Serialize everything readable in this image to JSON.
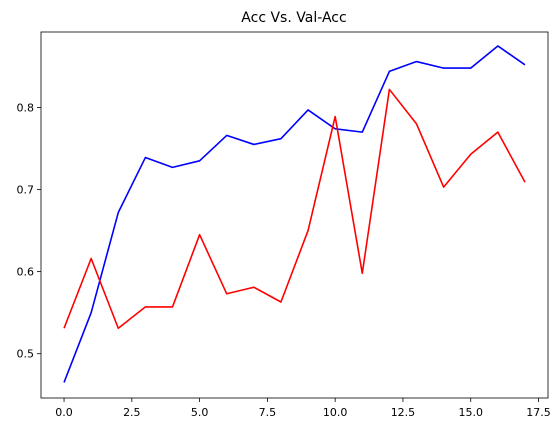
{
  "chart_data": {
    "type": "line",
    "title": "Acc Vs. Val-Acc",
    "xlabel": "",
    "ylabel": "",
    "xlim": [
      -0.85,
      17.85
    ],
    "ylim": [
      0.446,
      0.892
    ],
    "xticks": [
      0.0,
      2.5,
      5.0,
      7.5,
      10.0,
      12.5,
      15.0,
      17.5
    ],
    "xtick_labels": [
      "0.0",
      "2.5",
      "5.0",
      "7.5",
      "10.0",
      "12.5",
      "15.0",
      "17.5"
    ],
    "yticks": [
      0.5,
      0.6,
      0.7,
      0.8
    ],
    "ytick_labels": [
      "0.5",
      "0.6",
      "0.7",
      "0.8"
    ],
    "grid": false,
    "legend": null,
    "x": [
      0,
      1,
      2,
      3,
      4,
      5,
      6,
      7,
      8,
      9,
      10,
      11,
      12,
      13,
      14,
      15,
      16,
      17
    ],
    "series": [
      {
        "color": "#0000ff",
        "values": [
          0.465,
          0.55,
          0.672,
          0.739,
          0.727,
          0.735,
          0.766,
          0.755,
          0.762,
          0.797,
          0.774,
          0.77,
          0.844,
          0.856,
          0.848,
          0.848,
          0.875,
          0.852
        ]
      },
      {
        "color": "#ff0000",
        "values": [
          0.531,
          0.616,
          0.531,
          0.557,
          0.557,
          0.645,
          0.573,
          0.581,
          0.563,
          0.65,
          0.789,
          0.598,
          0.822,
          0.78,
          0.703,
          0.743,
          0.77,
          0.709
        ]
      }
    ]
  }
}
